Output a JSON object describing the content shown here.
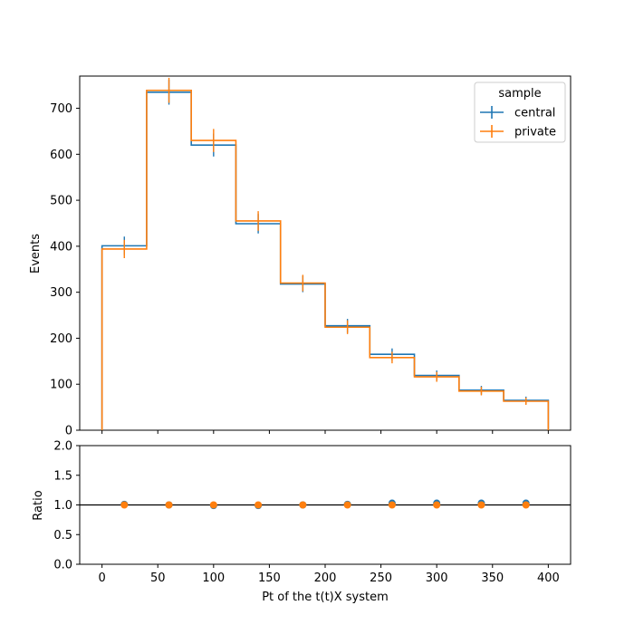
{
  "chart_data": [
    {
      "type": "line",
      "panel": "main",
      "drawstyle": "steps",
      "xlabel": "",
      "ylabel": "Events",
      "xlim": [
        -20,
        420
      ],
      "ylim": [
        0,
        770
      ],
      "yticks": [
        0,
        100,
        200,
        300,
        400,
        500,
        600,
        700
      ],
      "xticks": [
        0,
        50,
        100,
        150,
        200,
        250,
        300,
        350,
        400
      ],
      "x_tick_labels_shown": false,
      "bin_edges": [
        0,
        40,
        80,
        120,
        160,
        200,
        240,
        280,
        320,
        360,
        400
      ],
      "series": [
        {
          "name": "central",
          "color": "#1f77b4",
          "values": [
            401,
            735,
            620,
            449,
            318,
            227,
            165,
            119,
            87,
            65
          ]
        },
        {
          "name": "private",
          "color": "#ff7f0e",
          "values": [
            394,
            739,
            630,
            455,
            320,
            224,
            158,
            116,
            85,
            63
          ]
        }
      ],
      "legend": {
        "title": "sample",
        "placement": "top-right"
      }
    },
    {
      "type": "scatter",
      "panel": "ratio",
      "xlabel": "Pt of the t(t)X system",
      "ylabel": "Ratio",
      "xlim": [
        -20,
        420
      ],
      "ylim": [
        0,
        2
      ],
      "yticks": [
        "0.0",
        "0.5",
        "1.0",
        "1.5",
        "2.0"
      ],
      "xticks": [
        "0",
        "50",
        "100",
        "150",
        "200",
        "250",
        "300",
        "350",
        "400"
      ],
      "reference_line": 1.0,
      "x": [
        20,
        60,
        100,
        140,
        180,
        220,
        260,
        300,
        340,
        380
      ],
      "series": [
        {
          "name": "central",
          "color": "#1f77b4",
          "values": [
            1.01,
            1.0,
            0.99,
            0.99,
            1.0,
            1.01,
            1.03,
            1.03,
            1.03,
            1.03
          ]
        },
        {
          "name": "private",
          "color": "#ff7f0e",
          "values": [
            1.0,
            1.0,
            1.0,
            1.0,
            1.0,
            1.0,
            1.0,
            1.0,
            1.0,
            1.0
          ]
        }
      ]
    }
  ]
}
